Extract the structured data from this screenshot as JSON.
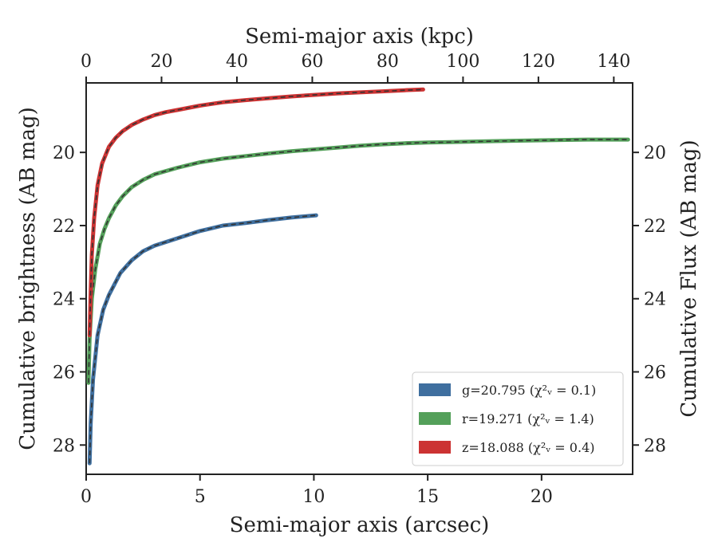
{
  "chart_data": {
    "type": "line",
    "title": "",
    "xlabel": "Semi-major axis (arcsec)",
    "ylabel": "Cumulative brightness (AB mag)",
    "x2label": "Semi-major axis (kpc)",
    "y2label": "Cumulative Flux (AB mag)",
    "xlim": [
      0,
      24
    ],
    "ylim": [
      28.8,
      18.1
    ],
    "x2lim": [
      0,
      145
    ],
    "xticks": [
      0,
      5,
      10,
      15,
      20
    ],
    "yticks": [
      20,
      22,
      24,
      26,
      28
    ],
    "x2ticks": [
      0,
      20,
      40,
      60,
      80,
      100,
      120,
      140
    ],
    "y2ticks": [
      20,
      22,
      24,
      26,
      28
    ],
    "legend_position": "lower right",
    "grid": false,
    "series": [
      {
        "name": "g=20.795 (χ²ᵥ = 0.1)",
        "color": "#3f6f9f",
        "x": [
          0.15,
          0.2,
          0.3,
          0.5,
          0.75,
          1.0,
          1.5,
          2.0,
          2.5,
          3.0,
          3.5,
          4.0,
          5.0,
          6.0,
          7.0,
          8.0,
          9.0,
          10.1
        ],
        "y": [
          28.5,
          27.4,
          26.2,
          25.0,
          24.3,
          23.9,
          23.3,
          22.95,
          22.7,
          22.55,
          22.45,
          22.35,
          22.15,
          22.0,
          21.93,
          21.85,
          21.78,
          21.72
        ]
      },
      {
        "name": "r=19.271 (χ²ᵥ = 1.4)",
        "color": "#54a05a",
        "x": [
          0.1,
          0.15,
          0.25,
          0.4,
          0.6,
          0.8,
          1.0,
          1.3,
          1.6,
          2.0,
          2.5,
          3.0,
          4.0,
          5.0,
          6.0,
          7.0,
          8.0,
          9.0,
          10.0,
          11.0,
          12.0,
          13.0,
          14.0,
          15.0,
          16.0,
          18.0,
          20.0,
          22.0,
          23.8
        ],
        "y": [
          26.3,
          25.1,
          24.0,
          23.2,
          22.5,
          22.1,
          21.8,
          21.45,
          21.2,
          20.95,
          20.75,
          20.6,
          20.42,
          20.27,
          20.17,
          20.1,
          20.03,
          19.97,
          19.92,
          19.87,
          19.82,
          19.78,
          19.75,
          19.73,
          19.72,
          19.69,
          19.67,
          19.65,
          19.65
        ]
      },
      {
        "name": "z=18.088 (χ²ᵥ = 0.4)",
        "color": "#cc3333",
        "x": [
          0.15,
          0.2,
          0.25,
          0.35,
          0.5,
          0.7,
          1.0,
          1.3,
          1.6,
          2.0,
          2.5,
          3.0,
          3.5,
          4.0,
          5.0,
          6.0,
          7.0,
          8.0,
          9.0,
          10.0,
          11.0,
          12.0,
          13.0,
          14.0,
          14.8
        ],
        "y": [
          25.0,
          23.8,
          22.8,
          21.8,
          20.9,
          20.3,
          19.85,
          19.6,
          19.42,
          19.25,
          19.1,
          18.98,
          18.9,
          18.84,
          18.72,
          18.63,
          18.57,
          18.52,
          18.47,
          18.43,
          18.39,
          18.36,
          18.33,
          18.3,
          18.28
        ]
      }
    ]
  }
}
